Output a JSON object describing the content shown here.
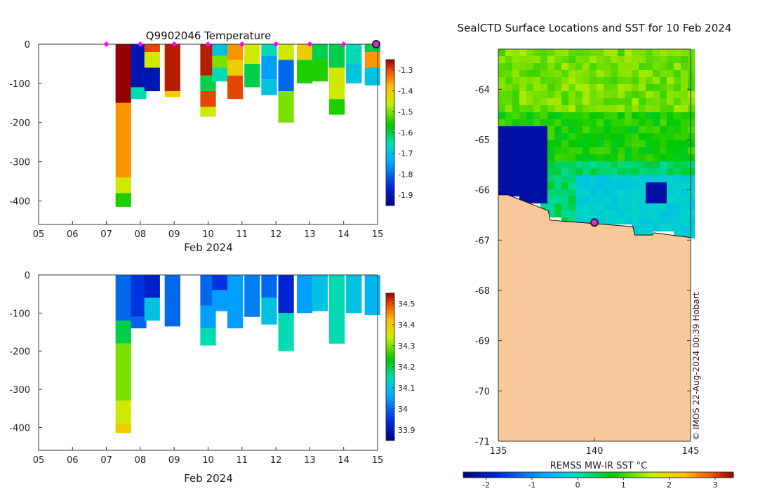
{
  "chart_data": [
    {
      "type": "heatmap",
      "title": "Q9902046  Temperature",
      "xlabel": "Feb 2024",
      "x_ticks": [
        "05",
        "06",
        "07",
        "08",
        "09",
        "10",
        "11",
        "12",
        "13",
        "14",
        "15"
      ],
      "x_range": [
        5,
        15
      ],
      "y_ticks": [
        "0",
        "-100",
        "-200",
        "-300",
        "-400"
      ],
      "y_range": [
        -460,
        0
      ],
      "colorbar": {
        "ticks": [
          "-1.3",
          "-1.4",
          "-1.5",
          "-1.6",
          "-1.7",
          "-1.8",
          "-1.9"
        ],
        "range": [
          -1.95,
          -1.25
        ]
      },
      "profile_markers_day": [
        7.0,
        8.0,
        9.0,
        10.0,
        11.0,
        12.0,
        13.0,
        14.0
      ],
      "current_marker_day": 15.0,
      "profiles": [
        {
          "day": 7.5,
          "max_depth": 415,
          "layers": [
            [
              0,
              150,
              -1.25
            ],
            [
              150,
              340,
              -1.35
            ],
            [
              340,
              380,
              -1.45
            ],
            [
              380,
              415,
              -1.55
            ]
          ]
        },
        {
          "day": 7.95,
          "max_depth": 140,
          "layers": [
            [
              0,
              110,
              -1.9
            ],
            [
              110,
              140,
              -1.65
            ]
          ]
        },
        {
          "day": 8.35,
          "max_depth": 120,
          "layers": [
            [
              0,
              20,
              -1.3
            ],
            [
              20,
              60,
              -1.45
            ],
            [
              60,
              120,
              -1.9
            ]
          ]
        },
        {
          "day": 8.95,
          "max_depth": 135,
          "layers": [
            [
              0,
              120,
              -1.27
            ],
            [
              120,
              135,
              -1.4
            ]
          ]
        },
        {
          "day": 10.0,
          "max_depth": 185,
          "layers": [
            [
              0,
              80,
              -1.27
            ],
            [
              80,
              120,
              -1.6
            ],
            [
              120,
              160,
              -1.3
            ],
            [
              160,
              185,
              -1.45
            ]
          ]
        },
        {
          "day": 10.35,
          "max_depth": 95,
          "layers": [
            [
              0,
              30,
              -1.7
            ],
            [
              30,
              60,
              -1.5
            ],
            [
              60,
              95,
              -1.65
            ]
          ]
        },
        {
          "day": 10.8,
          "max_depth": 140,
          "layers": [
            [
              0,
              40,
              -1.35
            ],
            [
              40,
              80,
              -1.4
            ],
            [
              80,
              140,
              -1.3
            ]
          ]
        },
        {
          "day": 11.3,
          "max_depth": 110,
          "layers": [
            [
              0,
              50,
              -1.45
            ],
            [
              50,
              110,
              -1.6
            ]
          ]
        },
        {
          "day": 11.8,
          "max_depth": 130,
          "layers": [
            [
              0,
              30,
              -1.65
            ],
            [
              30,
              90,
              -1.75
            ],
            [
              90,
              130,
              -1.7
            ]
          ]
        },
        {
          "day": 12.3,
          "max_depth": 200,
          "layers": [
            [
              0,
              40,
              -1.45
            ],
            [
              40,
              120,
              -1.8
            ],
            [
              120,
              200,
              -1.5
            ]
          ]
        },
        {
          "day": 12.85,
          "max_depth": 100,
          "layers": [
            [
              0,
              40,
              -1.4
            ],
            [
              40,
              100,
              -1.55
            ]
          ]
        },
        {
          "day": 13.3,
          "max_depth": 95,
          "layers": [
            [
              0,
              40,
              -1.6
            ],
            [
              40,
              95,
              -1.55
            ]
          ]
        },
        {
          "day": 13.8,
          "max_depth": 180,
          "layers": [
            [
              0,
              60,
              -1.6
            ],
            [
              60,
              140,
              -1.45
            ],
            [
              140,
              180,
              -1.55
            ]
          ]
        },
        {
          "day": 14.3,
          "max_depth": 100,
          "layers": [
            [
              0,
              50,
              -1.65
            ],
            [
              50,
              100,
              -1.7
            ]
          ]
        },
        {
          "day": 14.85,
          "max_depth": 105,
          "layers": [
            [
              0,
              20,
              -1.6
            ],
            [
              20,
              60,
              -1.35
            ],
            [
              60,
              105,
              -1.7
            ]
          ]
        }
      ]
    },
    {
      "type": "heatmap",
      "title": "",
      "xlabel": "Feb 2024",
      "x_ticks": [
        "05",
        "06",
        "07",
        "08",
        "09",
        "10",
        "11",
        "12",
        "13",
        "14",
        "15"
      ],
      "x_range": [
        5,
        15
      ],
      "y_ticks": [
        "0",
        "-100",
        "-200",
        "-300",
        "-400"
      ],
      "y_range": [
        -460,
        0
      ],
      "colorbar": {
        "ticks": [
          "34.5",
          "34.4",
          "34.3",
          "34.2",
          "34.1",
          "34",
          "33.9"
        ],
        "range": [
          33.85,
          34.55
        ]
      },
      "profiles": [
        {
          "day": 7.5,
          "max_depth": 415,
          "layers": [
            [
              0,
              120,
              34.0
            ],
            [
              120,
              180,
              34.2
            ],
            [
              180,
              330,
              34.3
            ],
            [
              330,
              390,
              34.35
            ],
            [
              390,
              415,
              34.4
            ]
          ]
        },
        {
          "day": 7.95,
          "max_depth": 140,
          "layers": [
            [
              0,
              110,
              33.95
            ],
            [
              110,
              140,
              34.0
            ]
          ]
        },
        {
          "day": 8.35,
          "max_depth": 120,
          "layers": [
            [
              0,
              60,
              33.92
            ],
            [
              60,
              120,
              34.1
            ]
          ]
        },
        {
          "day": 8.95,
          "max_depth": 135,
          "layers": [
            [
              0,
              135,
              34.0
            ]
          ]
        },
        {
          "day": 10.0,
          "max_depth": 185,
          "layers": [
            [
              0,
              80,
              34.0
            ],
            [
              80,
              140,
              34.05
            ],
            [
              140,
              185,
              34.15
            ]
          ]
        },
        {
          "day": 10.35,
          "max_depth": 95,
          "layers": [
            [
              0,
              40,
              33.95
            ],
            [
              40,
              95,
              34.05
            ]
          ]
        },
        {
          "day": 10.8,
          "max_depth": 140,
          "layers": [
            [
              0,
              140,
              34.05
            ]
          ]
        },
        {
          "day": 11.3,
          "max_depth": 110,
          "layers": [
            [
              0,
              110,
              34.02
            ]
          ]
        },
        {
          "day": 11.8,
          "max_depth": 130,
          "layers": [
            [
              0,
              60,
              34.0
            ],
            [
              60,
              130,
              34.1
            ]
          ]
        },
        {
          "day": 12.3,
          "max_depth": 200,
          "layers": [
            [
              0,
              100,
              33.93
            ],
            [
              100,
              200,
              34.15
            ]
          ]
        },
        {
          "day": 12.85,
          "max_depth": 100,
          "layers": [
            [
              0,
              100,
              34.05
            ]
          ]
        },
        {
          "day": 13.3,
          "max_depth": 95,
          "layers": [
            [
              0,
              95,
              34.1
            ]
          ]
        },
        {
          "day": 13.8,
          "max_depth": 180,
          "layers": [
            [
              0,
              180,
              34.15
            ]
          ]
        },
        {
          "day": 14.3,
          "max_depth": 100,
          "layers": [
            [
              0,
              100,
              34.1
            ]
          ]
        },
        {
          "day": 14.85,
          "max_depth": 105,
          "layers": [
            [
              0,
              105,
              34.08
            ]
          ]
        }
      ]
    },
    {
      "type": "heatmap",
      "title": "SealCTD Surface Locations and SST for 10 Feb 2024",
      "xlabel": "",
      "x_ticks": [
        "135",
        "140",
        "145"
      ],
      "x_range": [
        135,
        145
      ],
      "y_ticks": [
        "-64",
        "-65",
        "-66",
        "-67",
        "-68",
        "-69",
        "-70",
        "-71"
      ],
      "y_range": [
        -71,
        -63.2
      ],
      "colorbar": {
        "label": "REMSS MW-IR SST °C",
        "ticks": [
          "-2",
          "-1",
          "0",
          "1",
          "2",
          "3"
        ],
        "range": [
          -2.5,
          3.4
        ]
      },
      "sea_ice_region_lon": [
        135,
        137.5
      ],
      "station": {
        "lon": 140.0,
        "lat": -66.65
      },
      "land_color": "#f8c89a",
      "watermark": "© IMOS 22-Aug-2024 00:39 Hobart"
    }
  ]
}
